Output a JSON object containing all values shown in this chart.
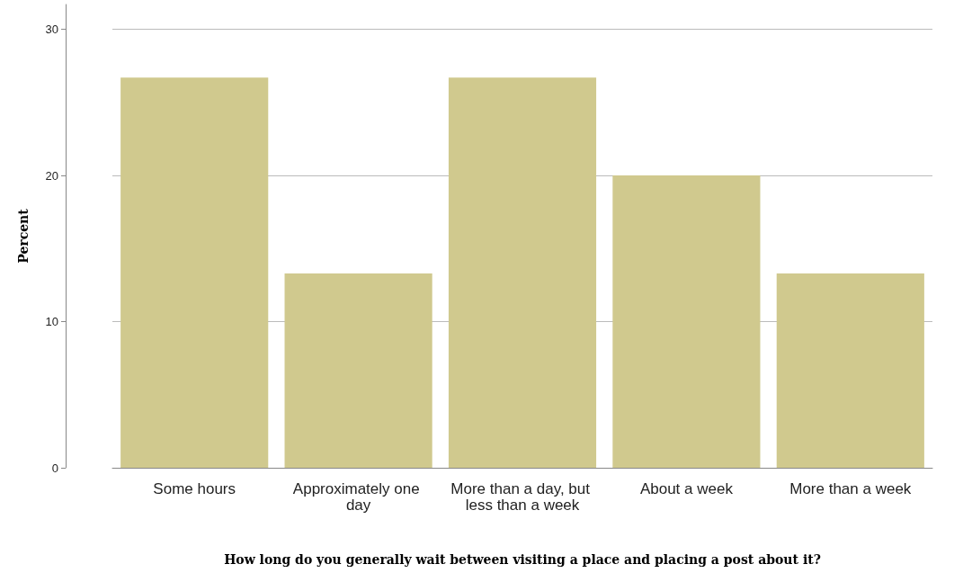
{
  "chart_data": {
    "type": "bar",
    "xlabel": "How long do you generally wait between visiting a place and placing a post about it?",
    "ylabel": "Percent",
    "categories": [
      "Some hours",
      "Approximately one day",
      "More than a day, but less than a week",
      "About a week",
      "More than a week"
    ],
    "values": [
      26.7,
      13.3,
      26.7,
      20,
      13.3
    ],
    "color": "#d0c98e",
    "ylim": [
      0,
      31.7
    ],
    "yticks": [
      0,
      10,
      20,
      30
    ],
    "grid": "y"
  }
}
